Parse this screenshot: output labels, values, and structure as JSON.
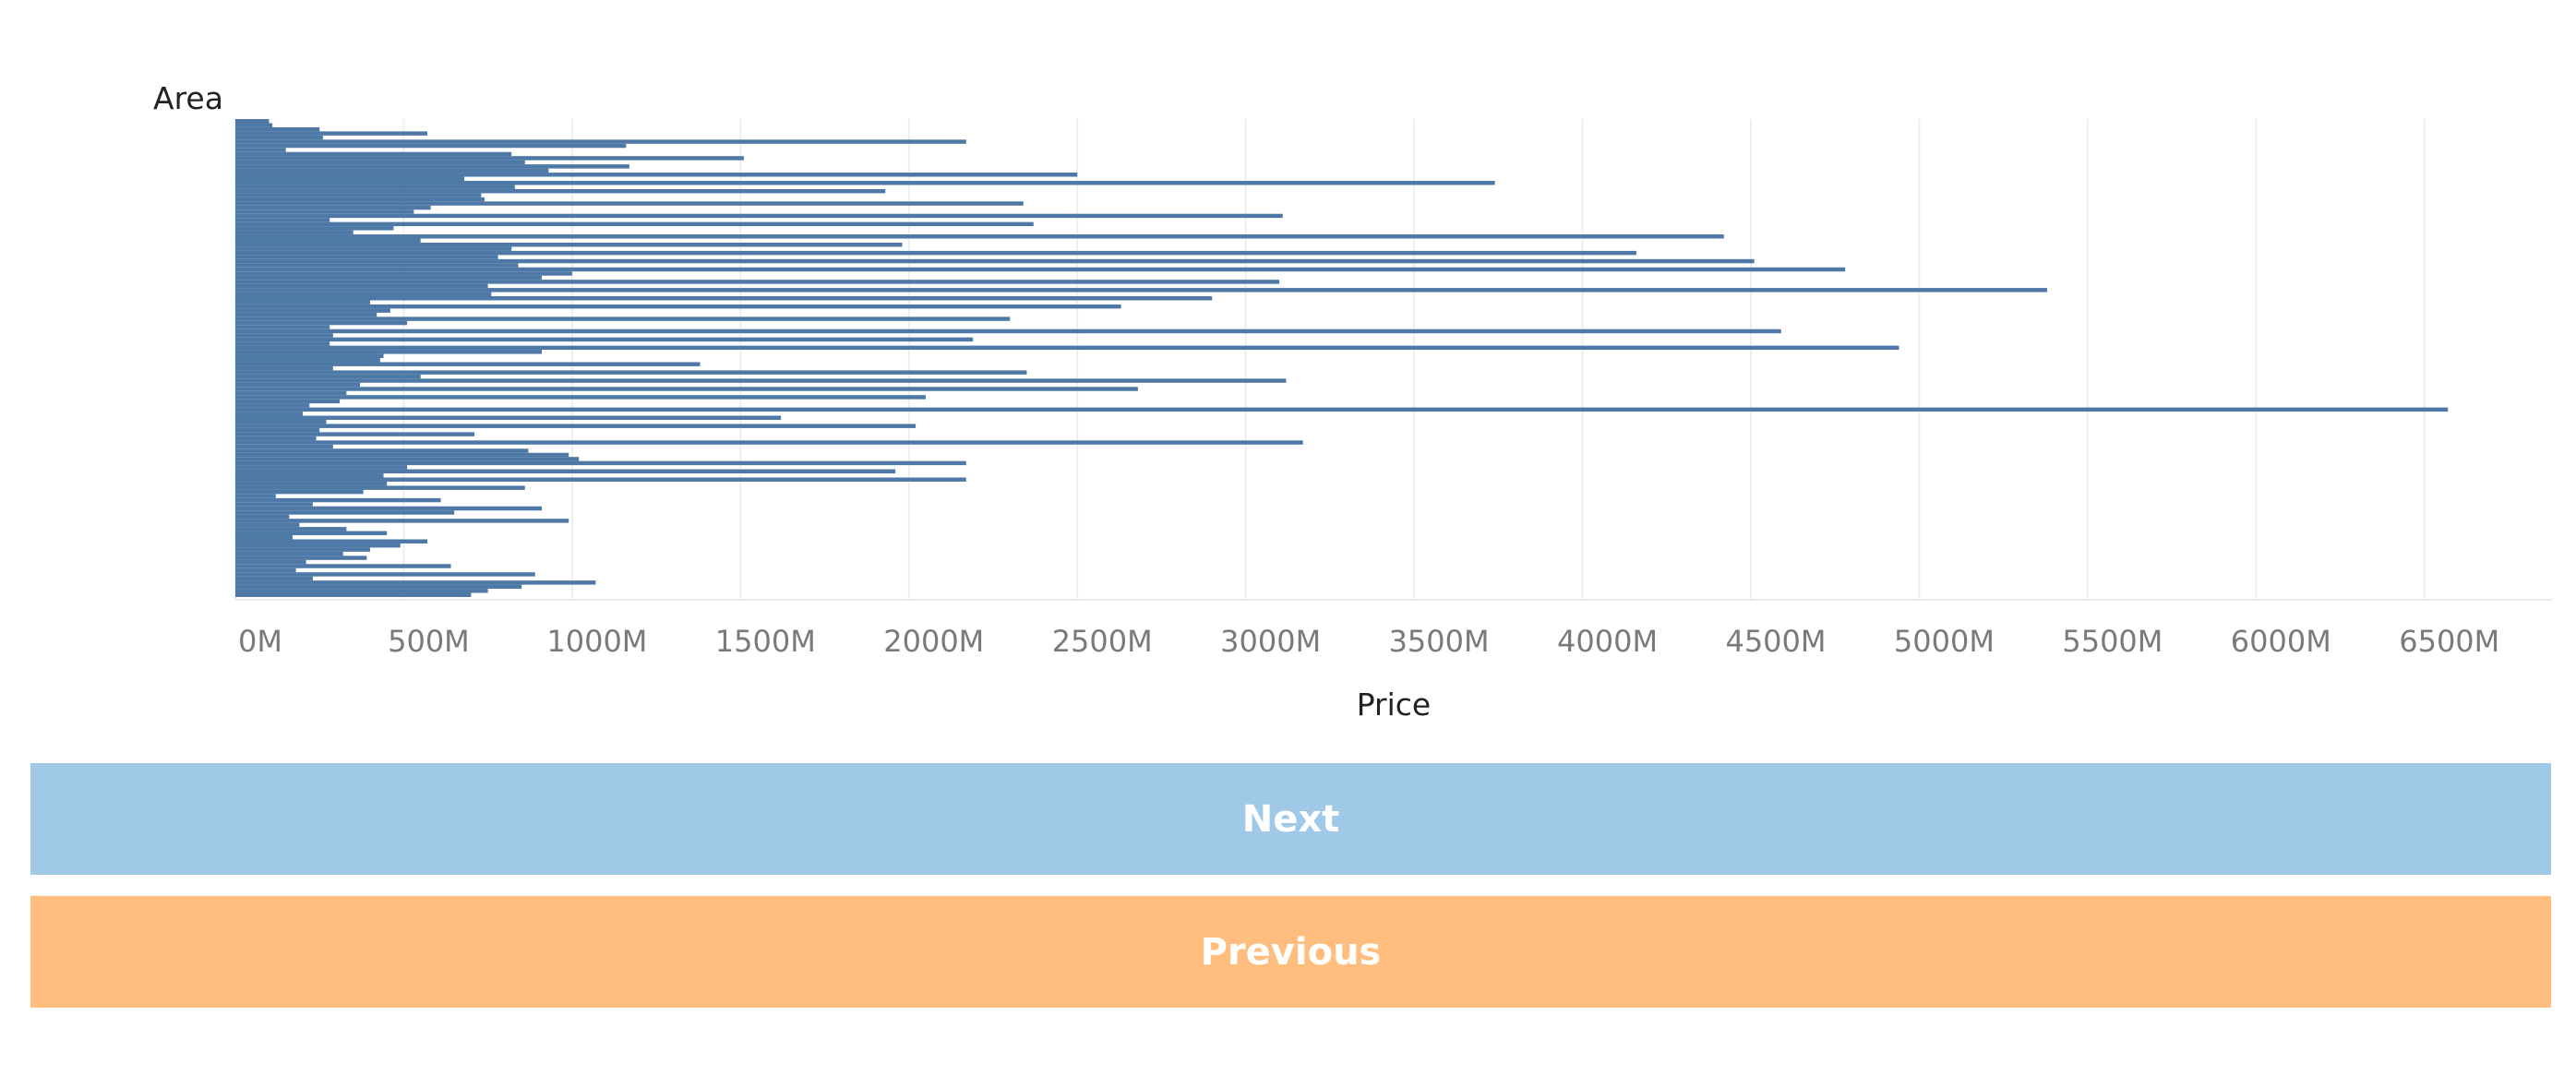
{
  "chart_data": {
    "type": "bar",
    "orientation": "horizontal",
    "ylabel": "Area",
    "xlabel": "Price",
    "xlim": [
      0,
      6900
    ],
    "x_unit_suffix": "M",
    "x_ticks": [
      0,
      500,
      1000,
      1500,
      2000,
      2500,
      3000,
      3500,
      4000,
      4500,
      5000,
      5500,
      6000,
      6500
    ],
    "x_tick_labels": [
      "0M",
      "500M",
      "1000M",
      "1500M",
      "2000M",
      "2500M",
      "3000M",
      "3500M",
      "4000M",
      "4500M",
      "5000M",
      "5500M",
      "6000M",
      "6500M"
    ],
    "grid": {
      "x": true,
      "y": false
    },
    "legend": "none",
    "bar_color": "#4e79a7",
    "values": [
      100,
      110,
      250,
      570,
      260,
      2170,
      1160,
      150,
      820,
      1510,
      860,
      1170,
      930,
      2500,
      680,
      3740,
      830,
      1930,
      730,
      740,
      2340,
      580,
      530,
      3110,
      280,
      2370,
      470,
      350,
      4420,
      550,
      1980,
      820,
      4160,
      780,
      4510,
      840,
      4780,
      1000,
      910,
      3100,
      750,
      5380,
      760,
      2900,
      400,
      2630,
      460,
      420,
      2300,
      510,
      280,
      4590,
      290,
      2190,
      280,
      4940,
      910,
      440,
      430,
      1380,
      290,
      2350,
      550,
      3120,
      370,
      2680,
      330,
      2050,
      310,
      220,
      6570,
      200,
      1620,
      270,
      2020,
      250,
      710,
      240,
      3170,
      290,
      870,
      990,
      1020,
      2170,
      510,
      1960,
      440,
      2170,
      450,
      860,
      380,
      120,
      610,
      230,
      910,
      650,
      160,
      990,
      190,
      330,
      450,
      170,
      570,
      490,
      400,
      320,
      390,
      210,
      640,
      180,
      890,
      230,
      1070,
      850,
      750,
      700
    ]
  },
  "buttons": {
    "next_label": "Next",
    "next_color": "#a0c9e8",
    "previous_label": "Previous",
    "previous_color": "#ffbe7d"
  }
}
